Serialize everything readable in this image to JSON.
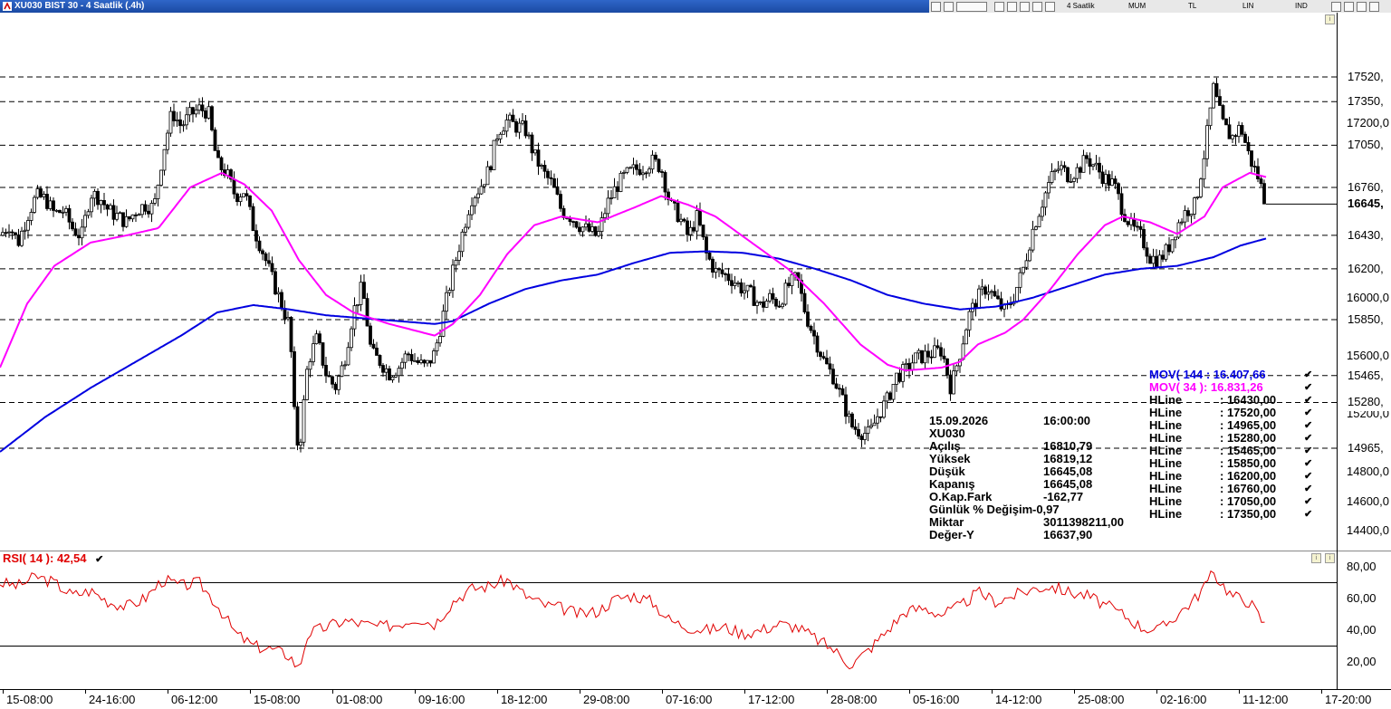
{
  "window": {
    "title": "XU030 BIST 30 - 4 Saatlik (.4h)",
    "toolbar_items": [
      "4 Saatlik",
      "MUM",
      "TL",
      "LIN",
      "IND"
    ]
  },
  "colors": {
    "mov144": "#0000e0",
    "mov34": "#ff00ff",
    "rsi": "#e00000",
    "candle_up": "#ffffff",
    "candle_down": "#000000"
  },
  "price_axis": {
    "ticks": [
      "17200,0",
      "16000,0",
      "15600,0",
      "15200,0",
      "14800,0",
      "14600,0",
      "14400,0"
    ],
    "current_price": "16645,",
    "hline_labels": [
      "17520,",
      "17350,",
      "17050,",
      "16760,",
      "16430,",
      "16200,",
      "15850,",
      "15465,",
      "15280,",
      "14965,"
    ]
  },
  "x_axis": {
    "labels": [
      "15-08:00",
      "24-16:00",
      "06-12:00",
      "15-08:00",
      "01-08:00",
      "09-16:00",
      "18-12:00",
      "29-08:00",
      "07-16:00",
      "17-12:00",
      "28-08:00",
      "05-16:00",
      "14-12:00",
      "25-08:00",
      "02-16:00",
      "11-12:00",
      "17-20:00"
    ]
  },
  "info_panel": {
    "date": "15.09.2026",
    "time": "16:00:00",
    "symbol": "XU030",
    "rows": [
      {
        "label": "Açılış",
        "value": "16810,79"
      },
      {
        "label": "Yüksek",
        "value": "16819,12"
      },
      {
        "label": "Düşük",
        "value": "16645,08"
      },
      {
        "label": "Kapanış",
        "value": "16645,08"
      },
      {
        "label": "O.Kap.Fark",
        "value": "-162,77"
      },
      {
        "label": "Günlük % Değişim",
        "value": "-0,97"
      },
      {
        "label": "Miktar",
        "value": "3011398211,00"
      },
      {
        "label": "Değer-Y",
        "value": "16637,90"
      }
    ]
  },
  "legend": {
    "mov144": "MOV( 144 : 16.407,66",
    "mov34": "MOV( 34 ): 16.831,26",
    "hlines": [
      {
        "label": "HLine",
        "value": ": 16430,00"
      },
      {
        "label": "HLine",
        "value": ": 17520,00"
      },
      {
        "label": "HLine",
        "value": ": 14965,00"
      },
      {
        "label": "HLine",
        "value": ": 15280,00"
      },
      {
        "label": "HLine",
        "value": ": 15465,00"
      },
      {
        "label": "HLine",
        "value": ": 15850,00"
      },
      {
        "label": "HLine",
        "value": ": 16200,00"
      },
      {
        "label": "HLine",
        "value": ": 16760,00"
      },
      {
        "label": "HLine",
        "value": ": 17050,00"
      },
      {
        "label": "HLine",
        "value": ": 17350,00"
      }
    ],
    "check": "✔"
  },
  "rsi_panel": {
    "label": "RSI( 14 ): 42,54",
    "ticks": [
      "80,00",
      "60,00",
      "40,00",
      "20,00"
    ],
    "upper": 70,
    "lower": 30
  },
  "chart_data": {
    "type": "candlestick",
    "symbol": "XU030",
    "horizontal_lines": [
      17520,
      17350,
      17050,
      16760,
      16430,
      16200,
      15850,
      15465,
      15280,
      14965
    ],
    "last_close": 16645.08,
    "mov144_last": 16407.66,
    "mov34_last": 16831.26,
    "rsi_last": 42.54,
    "keypoints_close": [
      [
        0,
        16430
      ],
      [
        10,
        16500
      ],
      [
        20,
        16380
      ],
      [
        30,
        16560
      ],
      [
        40,
        16700
      ],
      [
        50,
        16680
      ],
      [
        60,
        16580
      ],
      [
        70,
        16600
      ],
      [
        80,
        16480
      ],
      [
        90,
        16420
      ],
      [
        100,
        16720
      ],
      [
        110,
        16690
      ],
      [
        120,
        16600
      ],
      [
        130,
        16560
      ],
      [
        140,
        16520
      ],
      [
        150,
        16600
      ],
      [
        160,
        16640
      ],
      [
        170,
        16620
      ],
      [
        180,
        17000
      ],
      [
        190,
        17280
      ],
      [
        200,
        17180
      ],
      [
        210,
        17260
      ],
      [
        220,
        17300
      ],
      [
        230,
        17280
      ],
      [
        240,
        16920
      ],
      [
        250,
        16860
      ],
      [
        260,
        16700
      ],
      [
        270,
        16740
      ],
      [
        280,
        16480
      ],
      [
        290,
        16320
      ],
      [
        300,
        16140
      ],
      [
        310,
        15970
      ],
      [
        320,
        15800
      ],
      [
        325,
        15200
      ],
      [
        330,
        14920
      ],
      [
        340,
        15560
      ],
      [
        350,
        15720
      ],
      [
        360,
        15480
      ],
      [
        370,
        15380
      ],
      [
        380,
        15560
      ],
      [
        390,
        15900
      ],
      [
        400,
        16080
      ],
      [
        410,
        15620
      ],
      [
        420,
        15560
      ],
      [
        430,
        15480
      ],
      [
        440,
        15520
      ],
      [
        450,
        15620
      ],
      [
        460,
        15560
      ],
      [
        470,
        15520
      ],
      [
        480,
        15620
      ],
      [
        490,
        15900
      ],
      [
        500,
        16180
      ],
      [
        510,
        16430
      ],
      [
        520,
        16680
      ],
      [
        530,
        16760
      ],
      [
        540,
        16880
      ],
      [
        550,
        17150
      ],
      [
        560,
        17220
      ],
      [
        570,
        17180
      ],
      [
        580,
        17160
      ],
      [
        590,
        16980
      ],
      [
        600,
        16860
      ],
      [
        610,
        16780
      ],
      [
        620,
        16600
      ],
      [
        630,
        16560
      ],
      [
        640,
        16500
      ],
      [
        650,
        16460
      ],
      [
        660,
        16420
      ],
      [
        670,
        16640
      ],
      [
        680,
        16760
      ],
      [
        690,
        16840
      ],
      [
        700,
        16880
      ],
      [
        710,
        16900
      ],
      [
        720,
        16940
      ],
      [
        730,
        16900
      ],
      [
        740,
        16640
      ],
      [
        750,
        16560
      ],
      [
        760,
        16420
      ],
      [
        770,
        16560
      ],
      [
        780,
        16300
      ],
      [
        790,
        16180
      ],
      [
        800,
        16160
      ],
      [
        810,
        16120
      ],
      [
        820,
        16060
      ],
      [
        830,
        16020
      ],
      [
        840,
        15940
      ],
      [
        850,
        16000
      ],
      [
        860,
        15960
      ],
      [
        870,
        16080
      ],
      [
        880,
        16140
      ],
      [
        890,
        15880
      ],
      [
        900,
        15720
      ],
      [
        910,
        15560
      ],
      [
        920,
        15460
      ],
      [
        930,
        15300
      ],
      [
        940,
        15120
      ],
      [
        950,
        15080
      ],
      [
        960,
        15060
      ],
      [
        970,
        15200
      ],
      [
        980,
        15300
      ],
      [
        990,
        15460
      ],
      [
        1000,
        15500
      ],
      [
        1010,
        15580
      ],
      [
        1020,
        15600
      ],
      [
        1030,
        15620
      ],
      [
        1040,
        15640
      ],
      [
        1050,
        15380
      ],
      [
        1060,
        15620
      ],
      [
        1070,
        15880
      ],
      [
        1080,
        16000
      ],
      [
        1090,
        16080
      ],
      [
        1100,
        15980
      ],
      [
        1110,
        15900
      ],
      [
        1120,
        16020
      ],
      [
        1130,
        16200
      ],
      [
        1140,
        16460
      ],
      [
        1150,
        16640
      ],
      [
        1160,
        16820
      ],
      [
        1170,
        16900
      ],
      [
        1180,
        16840
      ],
      [
        1190,
        16880
      ],
      [
        1200,
        16960
      ],
      [
        1210,
        16900
      ],
      [
        1220,
        16820
      ],
      [
        1230,
        16780
      ],
      [
        1240,
        16600
      ],
      [
        1250,
        16480
      ],
      [
        1260,
        16420
      ],
      [
        1270,
        16280
      ],
      [
        1280,
        16260
      ],
      [
        1290,
        16340
      ],
      [
        1300,
        16500
      ],
      [
        1310,
        16600
      ],
      [
        1320,
        16640
      ],
      [
        1330,
        17000
      ],
      [
        1340,
        17440
      ],
      [
        1350,
        17200
      ],
      [
        1360,
        17100
      ],
      [
        1370,
        17180
      ],
      [
        1380,
        16960
      ],
      [
        1390,
        16820
      ],
      [
        1398,
        16645
      ]
    ],
    "mov34_keypoints": [
      [
        0,
        15520
      ],
      [
        30,
        15960
      ],
      [
        60,
        16220
      ],
      [
        100,
        16380
      ],
      [
        140,
        16430
      ],
      [
        175,
        16480
      ],
      [
        210,
        16760
      ],
      [
        245,
        16860
      ],
      [
        270,
        16780
      ],
      [
        300,
        16600
      ],
      [
        330,
        16260
      ],
      [
        360,
        16020
      ],
      [
        390,
        15900
      ],
      [
        430,
        15820
      ],
      [
        480,
        15740
      ],
      [
        500,
        15820
      ],
      [
        530,
        16020
      ],
      [
        560,
        16300
      ],
      [
        590,
        16500
      ],
      [
        620,
        16560
      ],
      [
        660,
        16520
      ],
      [
        700,
        16620
      ],
      [
        730,
        16700
      ],
      [
        760,
        16640
      ],
      [
        790,
        16560
      ],
      [
        830,
        16380
      ],
      [
        870,
        16200
      ],
      [
        910,
        15960
      ],
      [
        950,
        15680
      ],
      [
        980,
        15540
      ],
      [
        1000,
        15500
      ],
      [
        1040,
        15520
      ],
      [
        1060,
        15560
      ],
      [
        1080,
        15680
      ],
      [
        1110,
        15760
      ],
      [
        1130,
        15850
      ],
      [
        1160,
        16060
      ],
      [
        1190,
        16300
      ],
      [
        1220,
        16500
      ],
      [
        1240,
        16560
      ],
      [
        1270,
        16520
      ],
      [
        1300,
        16440
      ],
      [
        1330,
        16560
      ],
      [
        1350,
        16760
      ],
      [
        1380,
        16860
      ],
      [
        1398,
        16831
      ]
    ],
    "mov144_keypoints": [
      [
        0,
        14940
      ],
      [
        50,
        15180
      ],
      [
        100,
        15380
      ],
      [
        150,
        15560
      ],
      [
        200,
        15740
      ],
      [
        240,
        15900
      ],
      [
        280,
        15950
      ],
      [
        320,
        15920
      ],
      [
        360,
        15880
      ],
      [
        400,
        15860
      ],
      [
        440,
        15840
      ],
      [
        480,
        15820
      ],
      [
        500,
        15840
      ],
      [
        540,
        15960
      ],
      [
        580,
        16060
      ],
      [
        620,
        16120
      ],
      [
        660,
        16160
      ],
      [
        700,
        16240
      ],
      [
        740,
        16310
      ],
      [
        780,
        16320
      ],
      [
        820,
        16310
      ],
      [
        860,
        16270
      ],
      [
        900,
        16200
      ],
      [
        940,
        16120
      ],
      [
        980,
        16020
      ],
      [
        1020,
        15960
      ],
      [
        1060,
        15920
      ],
      [
        1100,
        15940
      ],
      [
        1140,
        16000
      ],
      [
        1180,
        16080
      ],
      [
        1220,
        16160
      ],
      [
        1260,
        16200
      ],
      [
        1300,
        16220
      ],
      [
        1340,
        16280
      ],
      [
        1370,
        16360
      ],
      [
        1398,
        16408
      ]
    ],
    "rsi_keypoints": [
      [
        0,
        70
      ],
      [
        20,
        68
      ],
      [
        40,
        74
      ],
      [
        60,
        70
      ],
      [
        80,
        62
      ],
      [
        100,
        65
      ],
      [
        120,
        58
      ],
      [
        140,
        55
      ],
      [
        160,
        60
      ],
      [
        180,
        72
      ],
      [
        200,
        68
      ],
      [
        220,
        70
      ],
      [
        240,
        56
      ],
      [
        260,
        38
      ],
      [
        280,
        30
      ],
      [
        300,
        28
      ],
      [
        320,
        24
      ],
      [
        330,
        15
      ],
      [
        340,
        38
      ],
      [
        360,
        42
      ],
      [
        380,
        46
      ],
      [
        400,
        44
      ],
      [
        420,
        42
      ],
      [
        440,
        44
      ],
      [
        460,
        48
      ],
      [
        480,
        44
      ],
      [
        500,
        58
      ],
      [
        520,
        66
      ],
      [
        540,
        68
      ],
      [
        560,
        72
      ],
      [
        580,
        62
      ],
      [
        600,
        56
      ],
      [
        620,
        54
      ],
      [
        640,
        50
      ],
      [
        660,
        52
      ],
      [
        680,
        60
      ],
      [
        700,
        62
      ],
      [
        720,
        58
      ],
      [
        740,
        46
      ],
      [
        760,
        42
      ],
      [
        780,
        40
      ],
      [
        800,
        42
      ],
      [
        820,
        38
      ],
      [
        840,
        40
      ],
      [
        860,
        44
      ],
      [
        880,
        42
      ],
      [
        900,
        35
      ],
      [
        920,
        28
      ],
      [
        940,
        18
      ],
      [
        960,
        28
      ],
      [
        980,
        40
      ],
      [
        1000,
        52
      ],
      [
        1020,
        54
      ],
      [
        1040,
        50
      ],
      [
        1060,
        55
      ],
      [
        1080,
        64
      ],
      [
        1100,
        58
      ],
      [
        1120,
        62
      ],
      [
        1140,
        66
      ],
      [
        1160,
        68
      ],
      [
        1180,
        64
      ],
      [
        1200,
        62
      ],
      [
        1220,
        56
      ],
      [
        1240,
        50
      ],
      [
        1260,
        42
      ],
      [
        1280,
        40
      ],
      [
        1300,
        50
      ],
      [
        1320,
        60
      ],
      [
        1340,
        76
      ],
      [
        1360,
        62
      ],
      [
        1380,
        58
      ],
      [
        1398,
        42
      ]
    ]
  }
}
